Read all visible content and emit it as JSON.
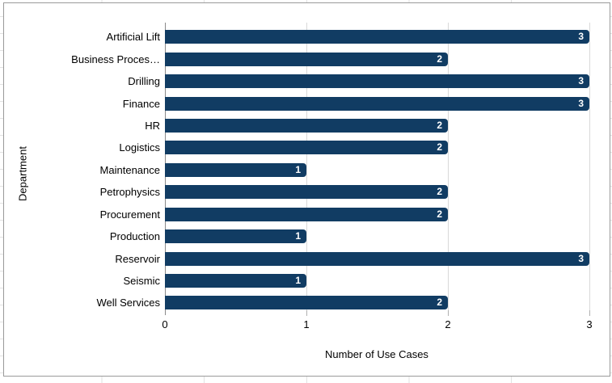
{
  "chart_data": {
    "type": "bar",
    "orientation": "horizontal",
    "categories": [
      "Artificial Lift",
      "Business Proces…",
      "Drilling",
      "Finance",
      "HR",
      "Logistics",
      "Maintenance",
      "Petrophysics",
      "Procurement",
      "Production",
      "Reservoir",
      "Seismic",
      "Well Services"
    ],
    "values": [
      3,
      2,
      3,
      3,
      2,
      2,
      1,
      2,
      2,
      1,
      3,
      1,
      2
    ],
    "xlabel": "Number of Use Cases",
    "ylabel": "Department",
    "xlim": [
      0,
      3
    ],
    "xticks": [
      0,
      1,
      2,
      3
    ],
    "xtick_labels": [
      "0",
      "1",
      "2",
      "3"
    ],
    "grid": "vertical-on",
    "legend": "none",
    "value_labels": "inside-end"
  },
  "colors": {
    "bar": "#113c63",
    "value_label": "#ffffff",
    "gridline": "#d9d9d9",
    "zero_line": "#8a8a8a",
    "tick": "#b0b0b0",
    "text": "#000000",
    "chart_border": "#9a9a9a",
    "sheet_gridline": "#e2e2e2",
    "background": "#ffffff"
  }
}
